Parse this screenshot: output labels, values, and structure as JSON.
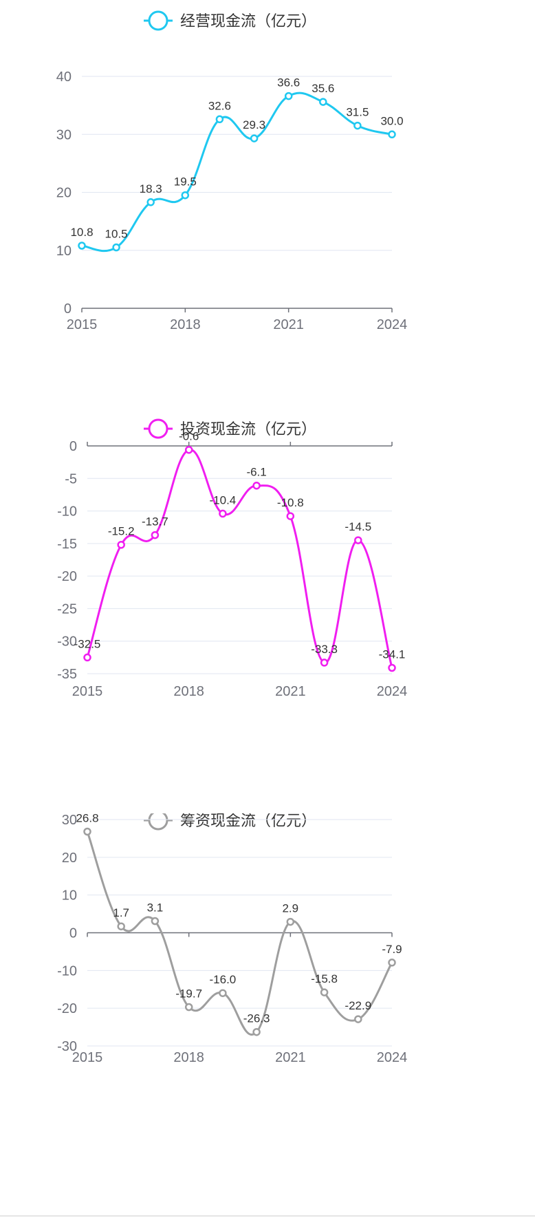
{
  "chart_data": [
    {
      "type": "line",
      "legend": "经营现金流（亿元）",
      "color": "#1fc8f0",
      "categories": [
        "2015",
        "2016",
        "2017",
        "2018",
        "2019",
        "2020",
        "2021",
        "2022",
        "2023",
        "2024"
      ],
      "x_tick_labels": [
        "2015",
        "2018",
        "2021",
        "2024"
      ],
      "y_ticks": [
        0,
        10,
        20,
        30,
        40
      ],
      "ylim": [
        0,
        40
      ],
      "values": [
        10.8,
        10.5,
        18.3,
        19.5,
        32.6,
        29.3,
        36.6,
        35.6,
        31.5,
        30.0
      ],
      "labels": [
        "10.8",
        "10.5",
        "18.3",
        "19.5",
        "32.6",
        "29.3",
        "36.6",
        "35.6",
        "31.5",
        "30.0"
      ],
      "grid": true,
      "legend_position": "top-center"
    },
    {
      "type": "line",
      "legend": "投资现金流（亿元）",
      "color": "#f01ef0",
      "categories": [
        "2015",
        "2016",
        "2017",
        "2018",
        "2019",
        "2020",
        "2021",
        "2022",
        "2023",
        "2024"
      ],
      "x_tick_labels": [
        "2015",
        "2018",
        "2021",
        "2024"
      ],
      "y_ticks": [
        0,
        -5,
        -10,
        -15,
        -20,
        -25,
        -30,
        -35
      ],
      "ylim": [
        -35,
        0
      ],
      "values": [
        -32.5,
        -15.2,
        -13.7,
        -0.6,
        -10.4,
        -6.1,
        -10.8,
        -33.3,
        -14.5,
        -34.1
      ],
      "labels": [
        "-32.5",
        "-15.2",
        "-13.7",
        "-0.6",
        "-10.4",
        "-6.1",
        "-10.8",
        "-33.3",
        "-14.5",
        "-34.1"
      ],
      "grid": true,
      "legend_position": "top-center"
    },
    {
      "type": "line",
      "legend": "筹资现金流（亿元）",
      "color": "#9e9e9e",
      "categories": [
        "2015",
        "2016",
        "2017",
        "2018",
        "2019",
        "2020",
        "2021",
        "2022",
        "2023",
        "2024"
      ],
      "x_tick_labels": [
        "2015",
        "2018",
        "2021",
        "2024"
      ],
      "y_ticks": [
        30,
        20,
        10,
        0,
        -10,
        -20,
        -30
      ],
      "ylim": [
        -30,
        30
      ],
      "values": [
        26.8,
        1.7,
        3.1,
        -19.7,
        -16.0,
        -26.3,
        2.9,
        -15.8,
        -22.9,
        -7.9
      ],
      "labels": [
        "26.8",
        "1.7",
        "3.1",
        "-19.7",
        "-16.0",
        "-26.3",
        "2.9",
        "-15.8",
        "-22.9",
        "-7.9"
      ],
      "grid": true,
      "legend_position": "top-center"
    }
  ]
}
